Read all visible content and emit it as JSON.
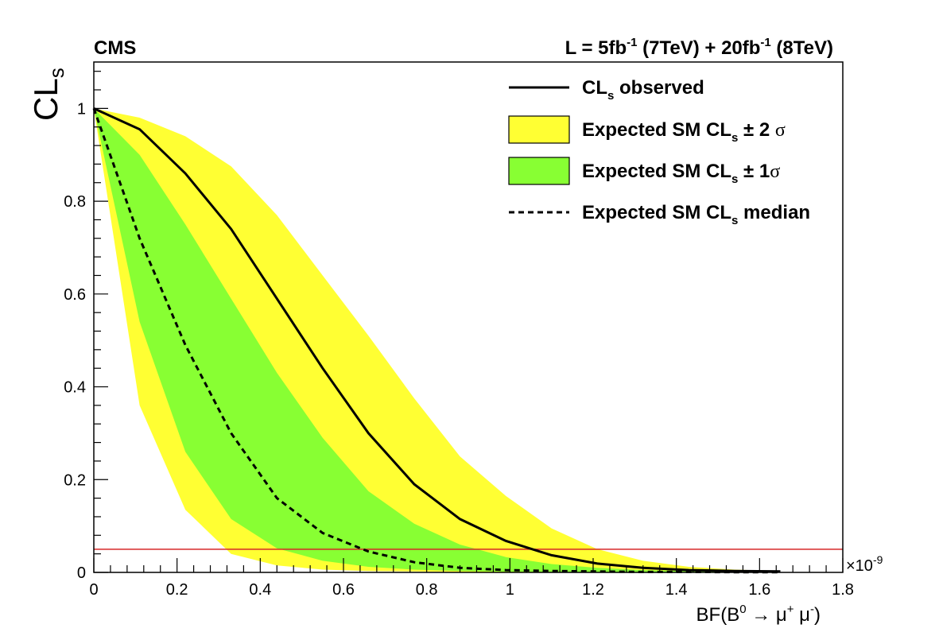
{
  "chart_data": {
    "type": "line",
    "experiment_label": "CMS",
    "lumi": {
      "prefix": "L = 5fb",
      "exp1": "-1",
      "mid": " (7TeV) + 20fb",
      "exp2": "-1",
      "suffix": " (8TeV)"
    },
    "ylabel": {
      "main": "CL",
      "sub": "s"
    },
    "xlabel": {
      "a": "BF(B",
      "sup0": "0",
      "b": " → μ",
      "supplus": "+",
      "c": " μ",
      "supminus": "-",
      "d": ")"
    },
    "x_multiplier": {
      "prefix": "×10",
      "exp": "-9"
    },
    "xlim": [
      0,
      1.8
    ],
    "ylim": [
      0,
      1.1
    ],
    "x_ticks": [
      "0",
      "0.2",
      "0.4",
      "0.6",
      "0.8",
      "1",
      "1.2",
      "1.4",
      "1.6",
      "1.8"
    ],
    "y_ticks": [
      "0",
      "0.2",
      "0.4",
      "0.6",
      "0.8",
      "1"
    ],
    "threshold": {
      "y": 0.05,
      "color": "#d62728"
    },
    "colors": {
      "band2": "#ffff33",
      "band1": "#88ff33",
      "line": "#000000",
      "border": "#000000"
    },
    "x": [
      0,
      0.11,
      0.22,
      0.33,
      0.44,
      0.55,
      0.66,
      0.77,
      0.88,
      0.99,
      1.1,
      1.21,
      1.32,
      1.43,
      1.54,
      1.65
    ],
    "series": [
      {
        "name": "observed",
        "values": [
          1.0,
          0.955,
          0.86,
          0.74,
          0.59,
          0.44,
          0.3,
          0.19,
          0.115,
          0.068,
          0.037,
          0.019,
          0.01,
          0.005,
          0.003,
          0.002
        ]
      },
      {
        "name": "median",
        "values": [
          1.0,
          0.72,
          0.49,
          0.3,
          0.16,
          0.085,
          0.045,
          0.022,
          0.01,
          0.005,
          0.003,
          0.002,
          0.001,
          0.001,
          0.0005,
          0.0003
        ]
      },
      {
        "name": "band2_up",
        "values": [
          1.0,
          0.98,
          0.94,
          0.875,
          0.77,
          0.64,
          0.51,
          0.375,
          0.25,
          0.165,
          0.095,
          0.05,
          0.025,
          0.012,
          0.006,
          0.003
        ]
      },
      {
        "name": "band2_down",
        "values": [
          1.0,
          0.36,
          0.135,
          0.04,
          0.015,
          0.006,
          0.003,
          0.002,
          0.001,
          0.0005,
          0.0003,
          0.0002,
          0.0001,
          0.0001,
          0.0,
          0.0
        ]
      },
      {
        "name": "band1_up",
        "values": [
          1.0,
          0.9,
          0.75,
          0.59,
          0.43,
          0.29,
          0.175,
          0.105,
          0.06,
          0.033,
          0.018,
          0.01,
          0.005,
          0.003,
          0.0015,
          0.001
        ]
      },
      {
        "name": "band1_down",
        "values": [
          1.0,
          0.54,
          0.26,
          0.115,
          0.052,
          0.025,
          0.012,
          0.006,
          0.003,
          0.0015,
          0.0008,
          0.0004,
          0.0002,
          0.0001,
          0.0,
          0.0
        ]
      }
    ],
    "legend": {
      "position": "top-right",
      "items": [
        {
          "key": "observed",
          "style": "line",
          "pre": "CL",
          "sub": "s",
          "post": " observed",
          "sym": ""
        },
        {
          "key": "band2",
          "style": "box",
          "pre": "Expected SM CL",
          "sub": "s",
          "post": " ± 2 ",
          "sym": "σ"
        },
        {
          "key": "band1",
          "style": "box",
          "pre": "Expected SM CL",
          "sub": "s",
          "post": " ± 1",
          "sym": "σ"
        },
        {
          "key": "median",
          "style": "dashed",
          "pre": "Expected SM CL",
          "sub": "s",
          "post": " median",
          "sym": ""
        }
      ]
    }
  }
}
